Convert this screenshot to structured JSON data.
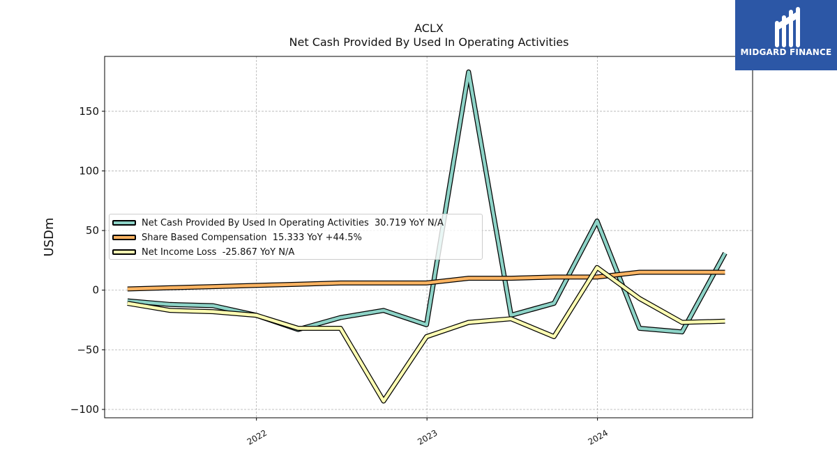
{
  "header": {
    "ticker": "ACLX",
    "subtitle": "Net Cash Provided By Used In Operating Activities"
  },
  "logo": {
    "text": "MIDGARD FINANCE",
    "bg_color": "#2c57a6"
  },
  "chart_data": {
    "type": "line",
    "ylabel": "USDm",
    "ylim": [
      -107,
      196
    ],
    "xlim": [
      "2021-02-10",
      "2024-11-28"
    ],
    "yticks": [
      -100,
      -50,
      0,
      50,
      100,
      150
    ],
    "xticks": [
      {
        "label": "2022",
        "date": "2022-01-01"
      },
      {
        "label": "2023",
        "date": "2023-01-01"
      },
      {
        "label": "2024",
        "date": "2024-01-01"
      }
    ],
    "grid": true,
    "legend_position": "center-left",
    "dates": [
      "2021-03-31",
      "2021-06-30",
      "2021-09-30",
      "2021-12-31",
      "2022-03-31",
      "2022-06-30",
      "2022-09-30",
      "2022-12-31",
      "2023-03-31",
      "2023-06-30",
      "2023-09-30",
      "2023-12-31",
      "2024-03-31",
      "2024-06-30",
      "2024-09-30"
    ],
    "series": [
      {
        "name": "Net Cash Provided By Used In Operating Activities",
        "legend": "Net Cash Provided By Used In Operating Activities  30.719 YoY N/A",
        "color": "#8dd3c7",
        "values": [
          -9,
          -12,
          -13,
          -21,
          -33,
          -23,
          -17,
          -29,
          183,
          -21,
          -11,
          58,
          -32,
          -35,
          31
        ]
      },
      {
        "name": "Share Based Compensation",
        "legend": "Share Based Compensation  15.333 YoY +44.5%",
        "color": "#fdb462",
        "values": [
          1,
          2,
          3,
          4,
          5,
          6,
          6,
          6,
          10,
          10,
          11,
          11,
          15,
          15,
          15
        ]
      },
      {
        "name": "Net Income Loss",
        "legend": "Net Income Loss  -25.867 YoY N/A",
        "color": "#ffffb3",
        "values": [
          -11,
          -17,
          -18,
          -21,
          -32,
          -32,
          -93,
          -39,
          -27,
          -24,
          -39,
          19,
          -7,
          -27,
          -26
        ]
      }
    ]
  }
}
